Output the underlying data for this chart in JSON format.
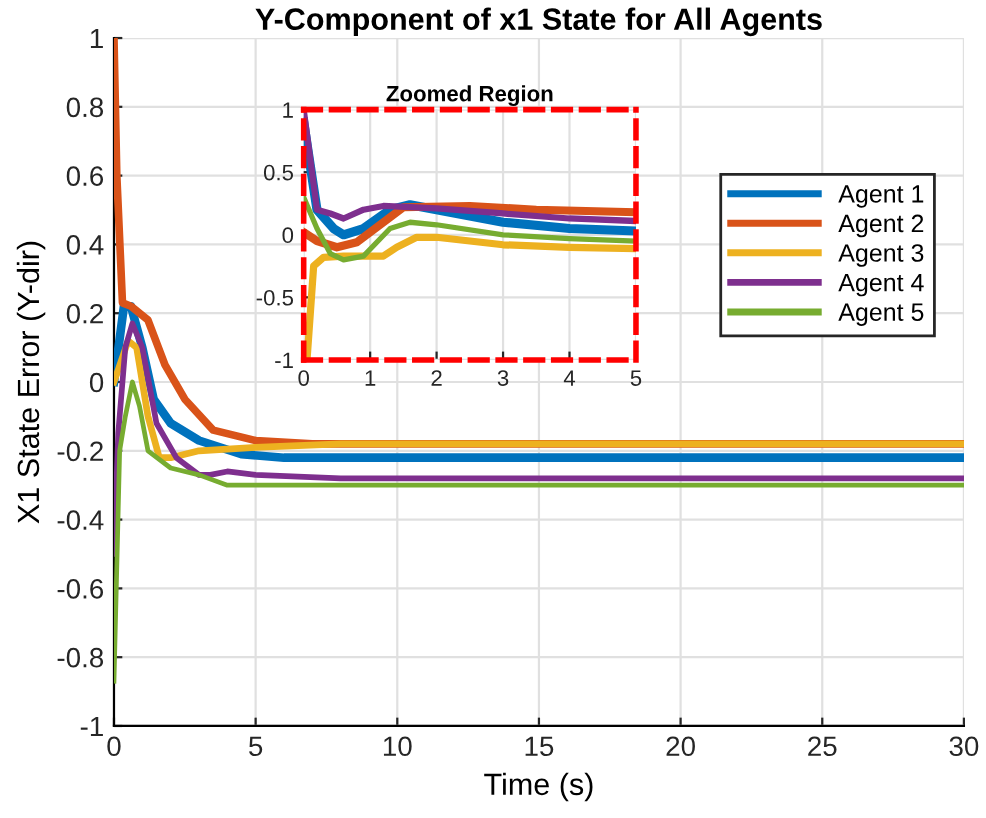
{
  "chart_data": [
    {
      "type": "line",
      "title": "Y-Component of x1 State for All Agents",
      "xlabel": "Time (s)",
      "ylabel": "X1 State Error (Y-dir)",
      "xlim": [
        0,
        30
      ],
      "ylim": [
        -1,
        1
      ],
      "xticks": [
        0,
        5,
        10,
        15,
        20,
        25,
        30
      ],
      "yticks": [
        -1,
        -0.8,
        -0.6,
        -0.4,
        -0.2,
        0,
        0.2,
        0.4,
        0.6,
        0.8,
        1
      ],
      "grid": true,
      "legend": "top right",
      "series": [
        {
          "name": "Agent 1",
          "color": "#0072bd",
          "x": [
            0,
            0.35,
            0.6,
            1.0,
            1.4,
            2,
            3,
            4.5,
            6,
            30
          ],
          "values": [
            0,
            0.22,
            0.22,
            0.1,
            -0.05,
            -0.12,
            -0.17,
            -0.21,
            -0.22,
            -0.22
          ]
        },
        {
          "name": "Agent 2",
          "color": "#d95319",
          "x": [
            0,
            0.1,
            0.3,
            0.6,
            1.2,
            1.8,
            2.5,
            3.5,
            5,
            7,
            30
          ],
          "values": [
            1,
            0.6,
            0.23,
            0.22,
            0.18,
            0.05,
            -0.05,
            -0.14,
            -0.17,
            -0.18,
            -0.18
          ]
        },
        {
          "name": "Agent 3",
          "color": "#edb120",
          "x": [
            0,
            0.5,
            0.8,
            1.2,
            1.6,
            2,
            3,
            5,
            8,
            30
          ],
          "values": [
            0,
            0.12,
            0.1,
            -0.1,
            -0.22,
            -0.22,
            -0.2,
            -0.19,
            -0.18,
            -0.18
          ]
        },
        {
          "name": "Agent 4",
          "color": "#7e2f8e",
          "x": [
            0,
            0.15,
            0.4,
            0.65,
            1.0,
            1.5,
            2.2,
            3,
            3.4,
            4,
            5,
            8,
            30
          ],
          "values": [
            -0.5,
            -0.15,
            0.1,
            0.17,
            0.1,
            -0.12,
            -0.22,
            -0.27,
            -0.27,
            -0.26,
            -0.27,
            -0.28,
            -0.28
          ]
        },
        {
          "name": "Agent 5",
          "color": "#77ac30",
          "x": [
            0,
            0.2,
            0.4,
            0.65,
            0.9,
            1.2,
            2,
            3,
            4,
            30
          ],
          "values": [
            -0.87,
            -0.2,
            -0.1,
            0,
            -0.07,
            -0.2,
            -0.25,
            -0.27,
            -0.3,
            -0.3
          ]
        }
      ]
    },
    {
      "type": "line",
      "title": "Zoomed Region",
      "xlim": [
        0,
        5
      ],
      "ylim": [
        -1,
        1
      ],
      "xticks": [
        0,
        1,
        2,
        3,
        4,
        5
      ],
      "yticks": [
        -1,
        -0.5,
        0,
        0.5,
        1
      ],
      "grid": true,
      "series": [
        {
          "color": "#0072bd",
          "x": [
            0,
            0.2,
            0.45,
            0.6,
            0.9,
            1.3,
            1.6,
            2,
            3,
            4,
            5
          ],
          "values": [
            0.9,
            0.2,
            0.05,
            0,
            0.05,
            0.2,
            0.24,
            0.2,
            0.1,
            0.05,
            0.03
          ]
        },
        {
          "color": "#d95319",
          "x": [
            0,
            0.2,
            0.5,
            0.8,
            1.2,
            1.5,
            2.5,
            3.5,
            5
          ],
          "values": [
            0.02,
            -0.05,
            -0.1,
            -0.06,
            0.1,
            0.22,
            0.23,
            0.2,
            0.18
          ]
        },
        {
          "color": "#edb120",
          "x": [
            0.05,
            0.15,
            0.3,
            0.6,
            1.2,
            1.4,
            1.7,
            2,
            3,
            4,
            5
          ],
          "values": [
            -1,
            -0.25,
            -0.18,
            -0.17,
            -0.17,
            -0.1,
            -0.02,
            -0.02,
            -0.08,
            -0.1,
            -0.11
          ]
        },
        {
          "color": "#7e2f8e",
          "x": [
            0,
            0.2,
            0.4,
            0.6,
            0.9,
            1.2,
            2,
            3,
            4,
            5
          ],
          "values": [
            1,
            0.2,
            0.17,
            0.13,
            0.2,
            0.23,
            0.21,
            0.17,
            0.13,
            0.11
          ]
        },
        {
          "color": "#77ac30",
          "x": [
            0,
            0.2,
            0.4,
            0.6,
            0.9,
            1.3,
            1.6,
            2,
            3,
            4,
            5
          ],
          "values": [
            0.3,
            0.05,
            -0.15,
            -0.2,
            -0.17,
            0.05,
            0.1,
            0.08,
            0,
            -0.03,
            -0.05
          ]
        }
      ]
    }
  ]
}
